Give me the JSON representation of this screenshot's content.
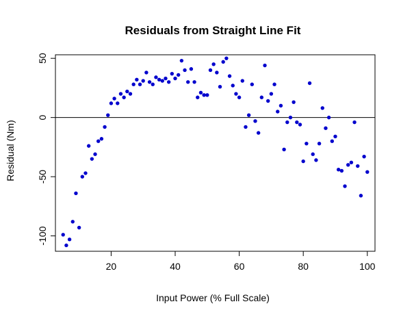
{
  "chart_data": {
    "type": "scatter",
    "title": "Residuals from Straight  Line Fit",
    "xlabel": "Input Power (% Full Scale)",
    "ylabel": "Residual (Nm)",
    "xlim": [
      2.6,
      102.4
    ],
    "ylim": [
      -113,
      53
    ],
    "xticks": [
      20,
      40,
      60,
      80,
      100
    ],
    "yticks": [
      -100,
      -50,
      0,
      50
    ],
    "xtick_labels": [
      "20",
      "40",
      "60",
      "80",
      "100"
    ],
    "ytick_labels": [
      "-100",
      "-50",
      "0",
      "50"
    ],
    "reference_line_y": 0,
    "grid": false,
    "legend": "none",
    "point_color": "#0000CD",
    "x": [
      5,
      6,
      7,
      8,
      9,
      10,
      11,
      12,
      13,
      14,
      15,
      16,
      17,
      18,
      19,
      20,
      21,
      22,
      23,
      24,
      25,
      26,
      27,
      28,
      29,
      30,
      31,
      32,
      33,
      34,
      35,
      36,
      37,
      38,
      39,
      40,
      41,
      42,
      43,
      44,
      45,
      46,
      47,
      48,
      49,
      50,
      51,
      52,
      53,
      54,
      55,
      56,
      57,
      58,
      59,
      60,
      61,
      62,
      63,
      64,
      65,
      66,
      67,
      68,
      69,
      70,
      71,
      72,
      73,
      74,
      75,
      76,
      77,
      78,
      79,
      80,
      81,
      82,
      83,
      84,
      85,
      86,
      87,
      88,
      89,
      90,
      91,
      92,
      93,
      94,
      95,
      96,
      97,
      98,
      99,
      100
    ],
    "y": [
      -99,
      -108,
      -103,
      -88,
      -64,
      -93,
      -50,
      -47,
      -24,
      -35,
      -31,
      -20,
      -18,
      -8,
      2,
      12,
      16,
      12,
      20,
      17,
      22,
      20,
      28,
      32,
      28,
      31,
      38,
      30,
      28,
      34,
      32,
      31,
      33,
      30,
      37,
      33,
      36,
      48,
      40,
      30,
      41,
      30,
      17,
      21,
      19,
      19,
      40,
      45,
      38,
      26,
      47,
      50,
      35,
      27,
      20,
      17,
      31,
      -8,
      2,
      28,
      -3,
      -13,
      17,
      44,
      14,
      20,
      28,
      5,
      10,
      -27,
      -4,
      0,
      13,
      -4,
      -6,
      -37,
      -22,
      29,
      -31,
      -36,
      -22,
      8,
      -9,
      0,
      -20,
      -16,
      -44,
      -45,
      -58,
      -40,
      -38,
      -4,
      -41,
      -66,
      -33,
      -46
    ]
  }
}
